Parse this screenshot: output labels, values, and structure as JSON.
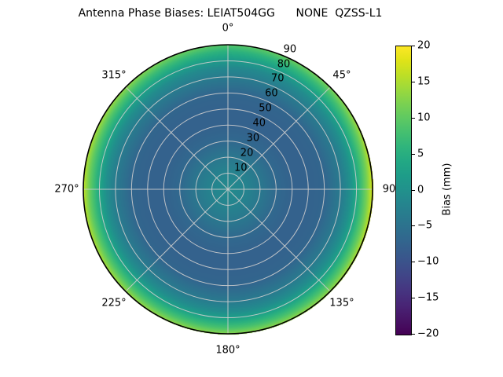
{
  "figure": {
    "background": "#ffffff"
  },
  "chart_data": {
    "type": "heatmap",
    "projection": "polar",
    "title": "Antenna Phase Biases: LEIAT504GG      NONE  QZSS-L1",
    "theta_ticks": [
      {
        "angle_deg": 0,
        "label": "0°"
      },
      {
        "angle_deg": 45,
        "label": "45°"
      },
      {
        "angle_deg": 90,
        "label": "90"
      },
      {
        "angle_deg": 135,
        "label": "135°"
      },
      {
        "angle_deg": 180,
        "label": "180°"
      },
      {
        "angle_deg": 225,
        "label": "225°"
      },
      {
        "angle_deg": 270,
        "label": "270°"
      },
      {
        "angle_deg": 315,
        "label": "315°"
      }
    ],
    "radial_ticks": [
      {
        "value": 10,
        "label": "10"
      },
      {
        "value": 20,
        "label": "20"
      },
      {
        "value": 30,
        "label": "30"
      },
      {
        "value": 40,
        "label": "40"
      },
      {
        "value": 50,
        "label": "50"
      },
      {
        "value": 60,
        "label": "60"
      },
      {
        "value": 70,
        "label": "70"
      },
      {
        "value": 80,
        "label": "80"
      },
      {
        "value": 90,
        "label": "90"
      }
    ],
    "radial_axis": {
      "min": 0,
      "max": 90,
      "label_angle_deg": 22.5
    },
    "grid": {
      "show": true,
      "color": "#cdcdcd"
    },
    "colorbar": {
      "label": "Bias (mm)",
      "min": -20,
      "max": 20,
      "ticks": [
        20,
        15,
        10,
        5,
        0,
        -5,
        -10,
        -15,
        -20
      ],
      "tick_labels": [
        "20",
        "15",
        "10",
        "5",
        "0",
        "−5",
        "−10",
        "−15",
        "−20"
      ],
      "colormap": "viridis"
    },
    "radial_profile": {
      "zenith_deg": [
        0,
        10,
        20,
        30,
        40,
        50,
        60,
        70,
        76,
        81,
        86,
        90
      ],
      "bias_mm": [
        -1,
        -2,
        -4,
        -6.5,
        -7.5,
        -7.5,
        -7,
        -3.5,
        -0.5,
        4,
        9,
        14
      ]
    },
    "rim_bias_by_azimuth": {
      "azimuth_deg": [
        0,
        45,
        90,
        135,
        180,
        225,
        270,
        315
      ],
      "bias_mm": [
        9,
        12,
        18,
        14,
        13,
        14,
        16,
        13
      ]
    }
  }
}
